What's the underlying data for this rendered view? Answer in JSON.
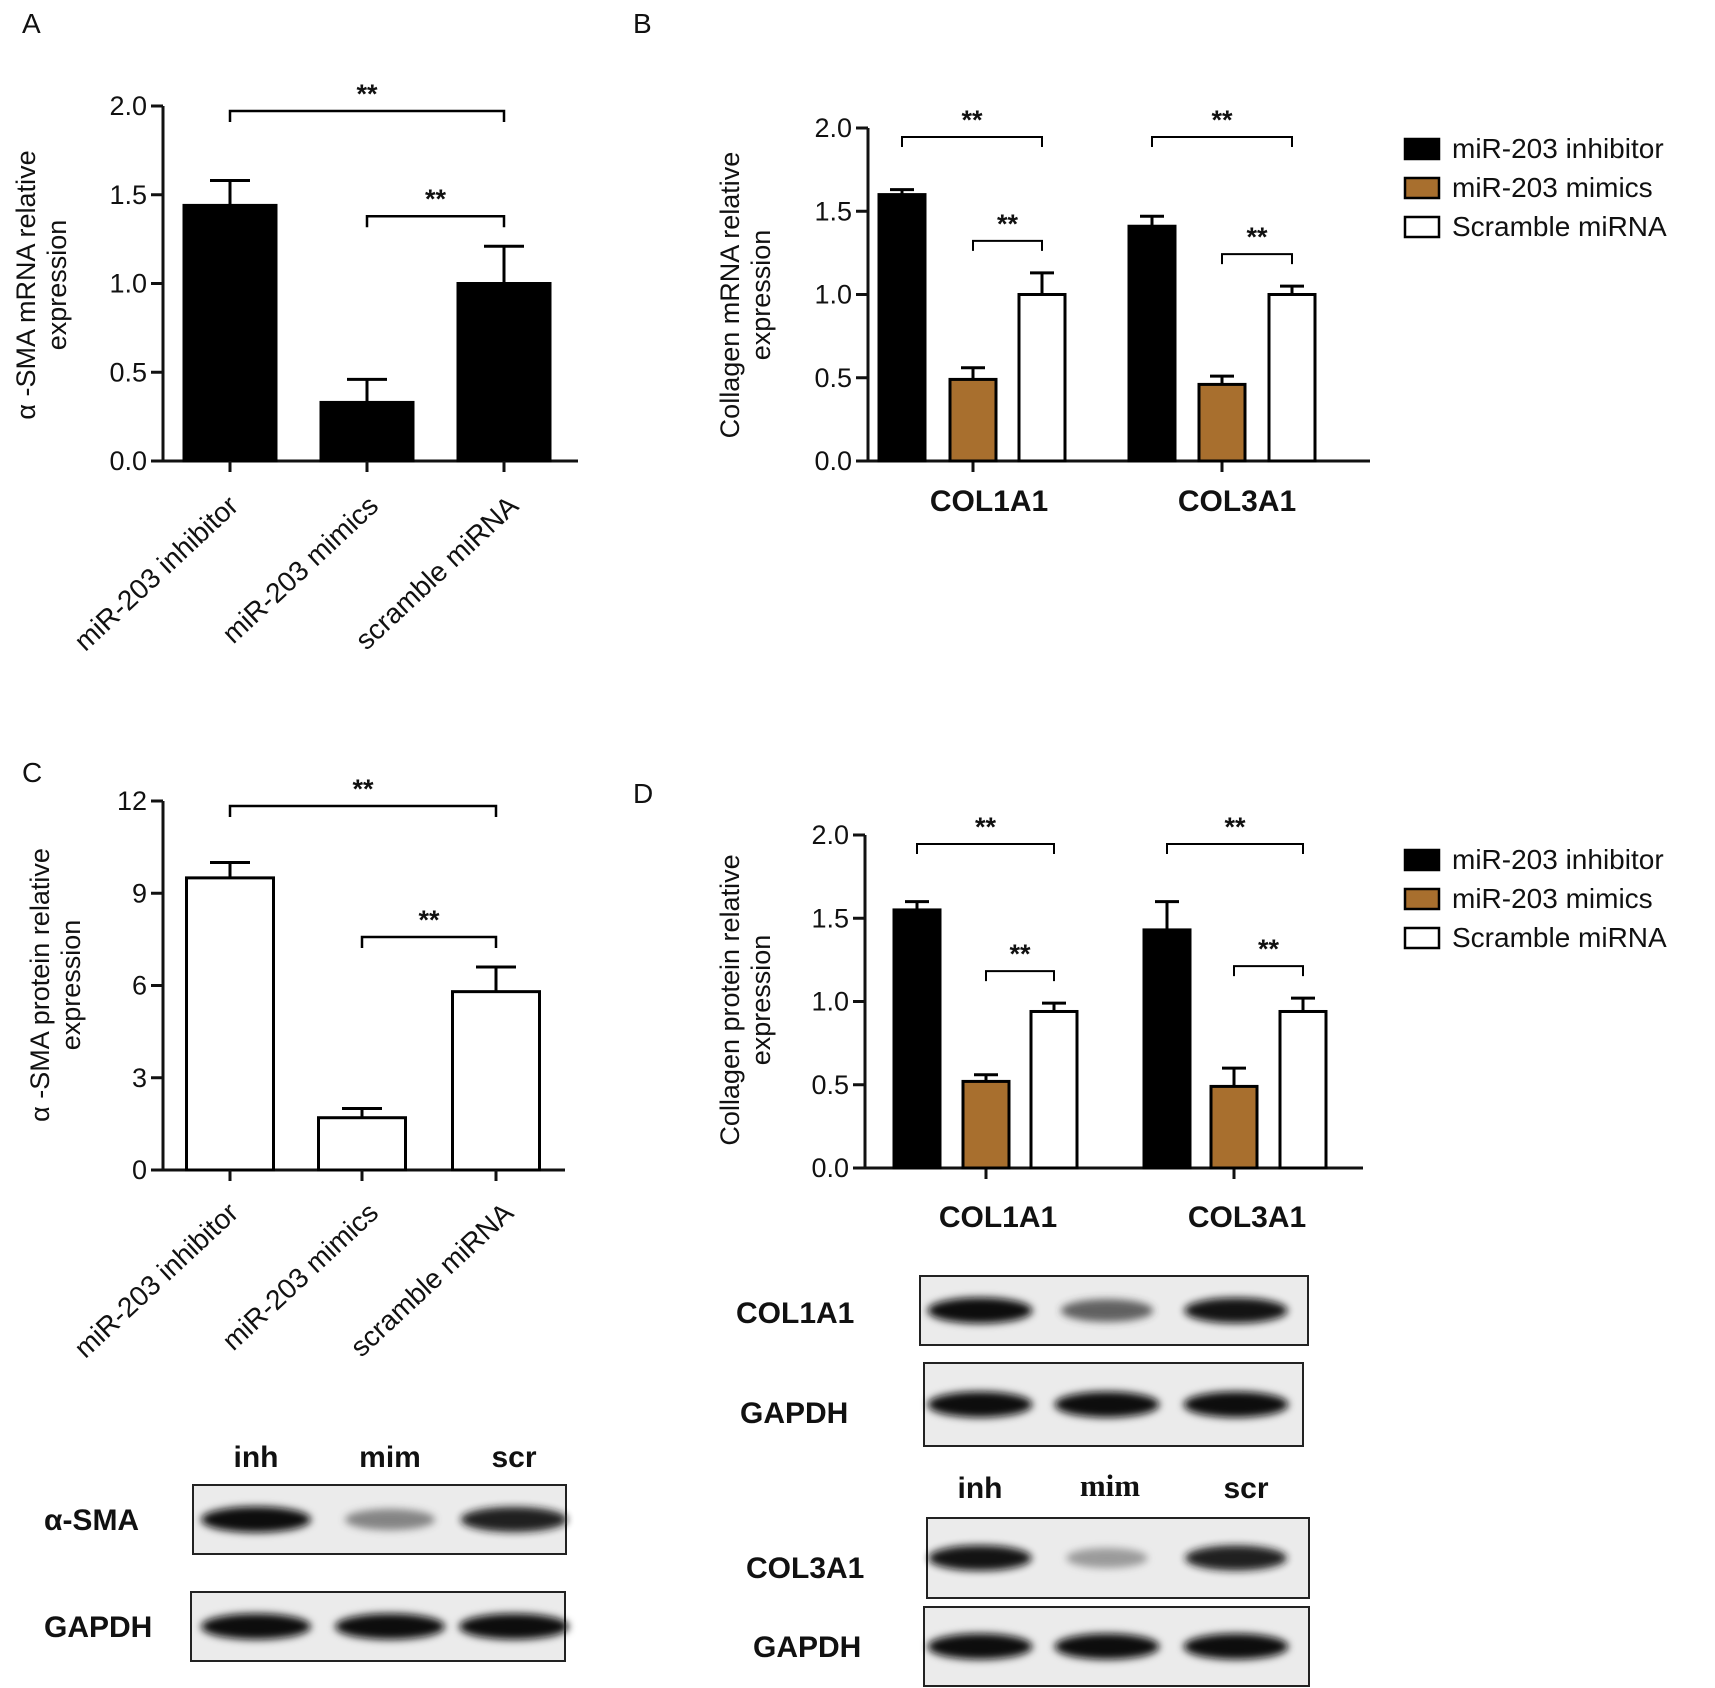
{
  "colors": {
    "inhibitor": "#000000",
    "mimics": "#a86f2e",
    "scramble": "#ffffff",
    "axis": "#111111"
  },
  "chart_data": [
    {
      "panel": "A",
      "type": "bar",
      "ylabel": [
        "α -SMA mRNA relative",
        "expression"
      ],
      "ylim": [
        0,
        2.0
      ],
      "yticks": [
        "0.0",
        "0.5",
        "1.0",
        "1.5",
        "2.0"
      ],
      "categories": [
        "miR-203 inhibitor",
        "miR-203 mimics",
        "scramble miRNA"
      ],
      "values": [
        1.44,
        0.33,
        1.0
      ],
      "errors": [
        0.14,
        0.13,
        0.21
      ],
      "bar_colors": [
        "#000000",
        "#000000",
        "#000000"
      ],
      "significance": [
        {
          "from": 0,
          "to": 2,
          "label": "**"
        },
        {
          "from": 1,
          "to": 2,
          "label": "**"
        }
      ]
    },
    {
      "panel": "B",
      "type": "bar",
      "ylabel": [
        "Collagen mRNA relative",
        "expression"
      ],
      "ylim": [
        0,
        2.0
      ],
      "yticks": [
        "0.0",
        "0.5",
        "1.0",
        "1.5",
        "2.0"
      ],
      "categories": [
        "COL1A1",
        "COL3A1"
      ],
      "series": [
        {
          "name": "miR-203 inhibitor",
          "values": [
            1.6,
            1.41
          ],
          "errors": [
            0.03,
            0.06
          ]
        },
        {
          "name": "miR-203 mimics",
          "values": [
            0.49,
            0.46
          ],
          "errors": [
            0.07,
            0.05
          ]
        },
        {
          "name": "Scramble miRNA",
          "values": [
            1.0,
            1.0
          ],
          "errors": [
            0.13,
            0.05
          ]
        }
      ],
      "legend": "right",
      "significance": [
        {
          "group": 0,
          "from": 0,
          "to": 2,
          "label": "**"
        },
        {
          "group": 0,
          "from": 1,
          "to": 2,
          "label": "**"
        },
        {
          "group": 1,
          "from": 0,
          "to": 2,
          "label": "**"
        },
        {
          "group": 1,
          "from": 1,
          "to": 2,
          "label": "**"
        }
      ]
    },
    {
      "panel": "C",
      "type": "bar",
      "ylabel": [
        "α -SMA protein relative",
        "expression"
      ],
      "ylim": [
        0,
        12
      ],
      "yticks": [
        "0",
        "3",
        "6",
        "9",
        "12"
      ],
      "categories": [
        "miR-203 inhibitor",
        "miR-203 mimics",
        "scramble miRNA"
      ],
      "values": [
        9.5,
        1.7,
        5.8
      ],
      "errors": [
        0.5,
        0.3,
        0.8
      ],
      "bar_colors": [
        "#ffffff",
        "#ffffff",
        "#ffffff"
      ],
      "significance": [
        {
          "from": 0,
          "to": 2,
          "label": "**"
        },
        {
          "from": 1,
          "to": 2,
          "label": "**"
        }
      ]
    },
    {
      "panel": "D",
      "type": "bar",
      "ylabel": [
        "Collagen protein relative",
        "expression"
      ],
      "ylim": [
        0,
        2.0
      ],
      "yticks": [
        "0.0",
        "0.5",
        "1.0",
        "1.5",
        "2.0"
      ],
      "categories": [
        "COL1A1",
        "COL3A1"
      ],
      "series": [
        {
          "name": "miR-203 inhibitor",
          "values": [
            1.55,
            1.43
          ],
          "errors": [
            0.05,
            0.17
          ]
        },
        {
          "name": "miR-203 mimics",
          "values": [
            0.52,
            0.49
          ],
          "errors": [
            0.04,
            0.11
          ]
        },
        {
          "name": "Scramble miRNA",
          "values": [
            0.94,
            0.94
          ],
          "errors": [
            0.05,
            0.08
          ]
        }
      ],
      "legend": "right",
      "significance": [
        {
          "group": 0,
          "from": 0,
          "to": 2,
          "label": "**"
        },
        {
          "group": 0,
          "from": 1,
          "to": 2,
          "label": "**"
        },
        {
          "group": 1,
          "from": 0,
          "to": 2,
          "label": "**"
        },
        {
          "group": 1,
          "from": 1,
          "to": 2,
          "label": "**"
        }
      ]
    }
  ],
  "blots": {
    "C": {
      "lanes": [
        "inh",
        "mim",
        "scr"
      ],
      "rows": [
        {
          "label": "α-SMA",
          "intensity": [
            1.0,
            0.4,
            0.9
          ]
        },
        {
          "label": "GAPDH",
          "intensity": [
            1.0,
            1.0,
            1.0
          ]
        }
      ]
    },
    "D": {
      "lanes": [
        "inh",
        "mim",
        "scr"
      ],
      "rows": [
        {
          "label": "COL1A1",
          "intensity": [
            1.0,
            0.6,
            0.95
          ]
        },
        {
          "label": "GAPDH",
          "intensity": [
            1.0,
            1.0,
            1.0
          ]
        },
        {
          "label": "COL3A1",
          "intensity": [
            0.95,
            0.25,
            0.9
          ]
        },
        {
          "label": "GAPDH",
          "intensity": [
            1.0,
            1.0,
            1.0
          ]
        }
      ]
    }
  }
}
